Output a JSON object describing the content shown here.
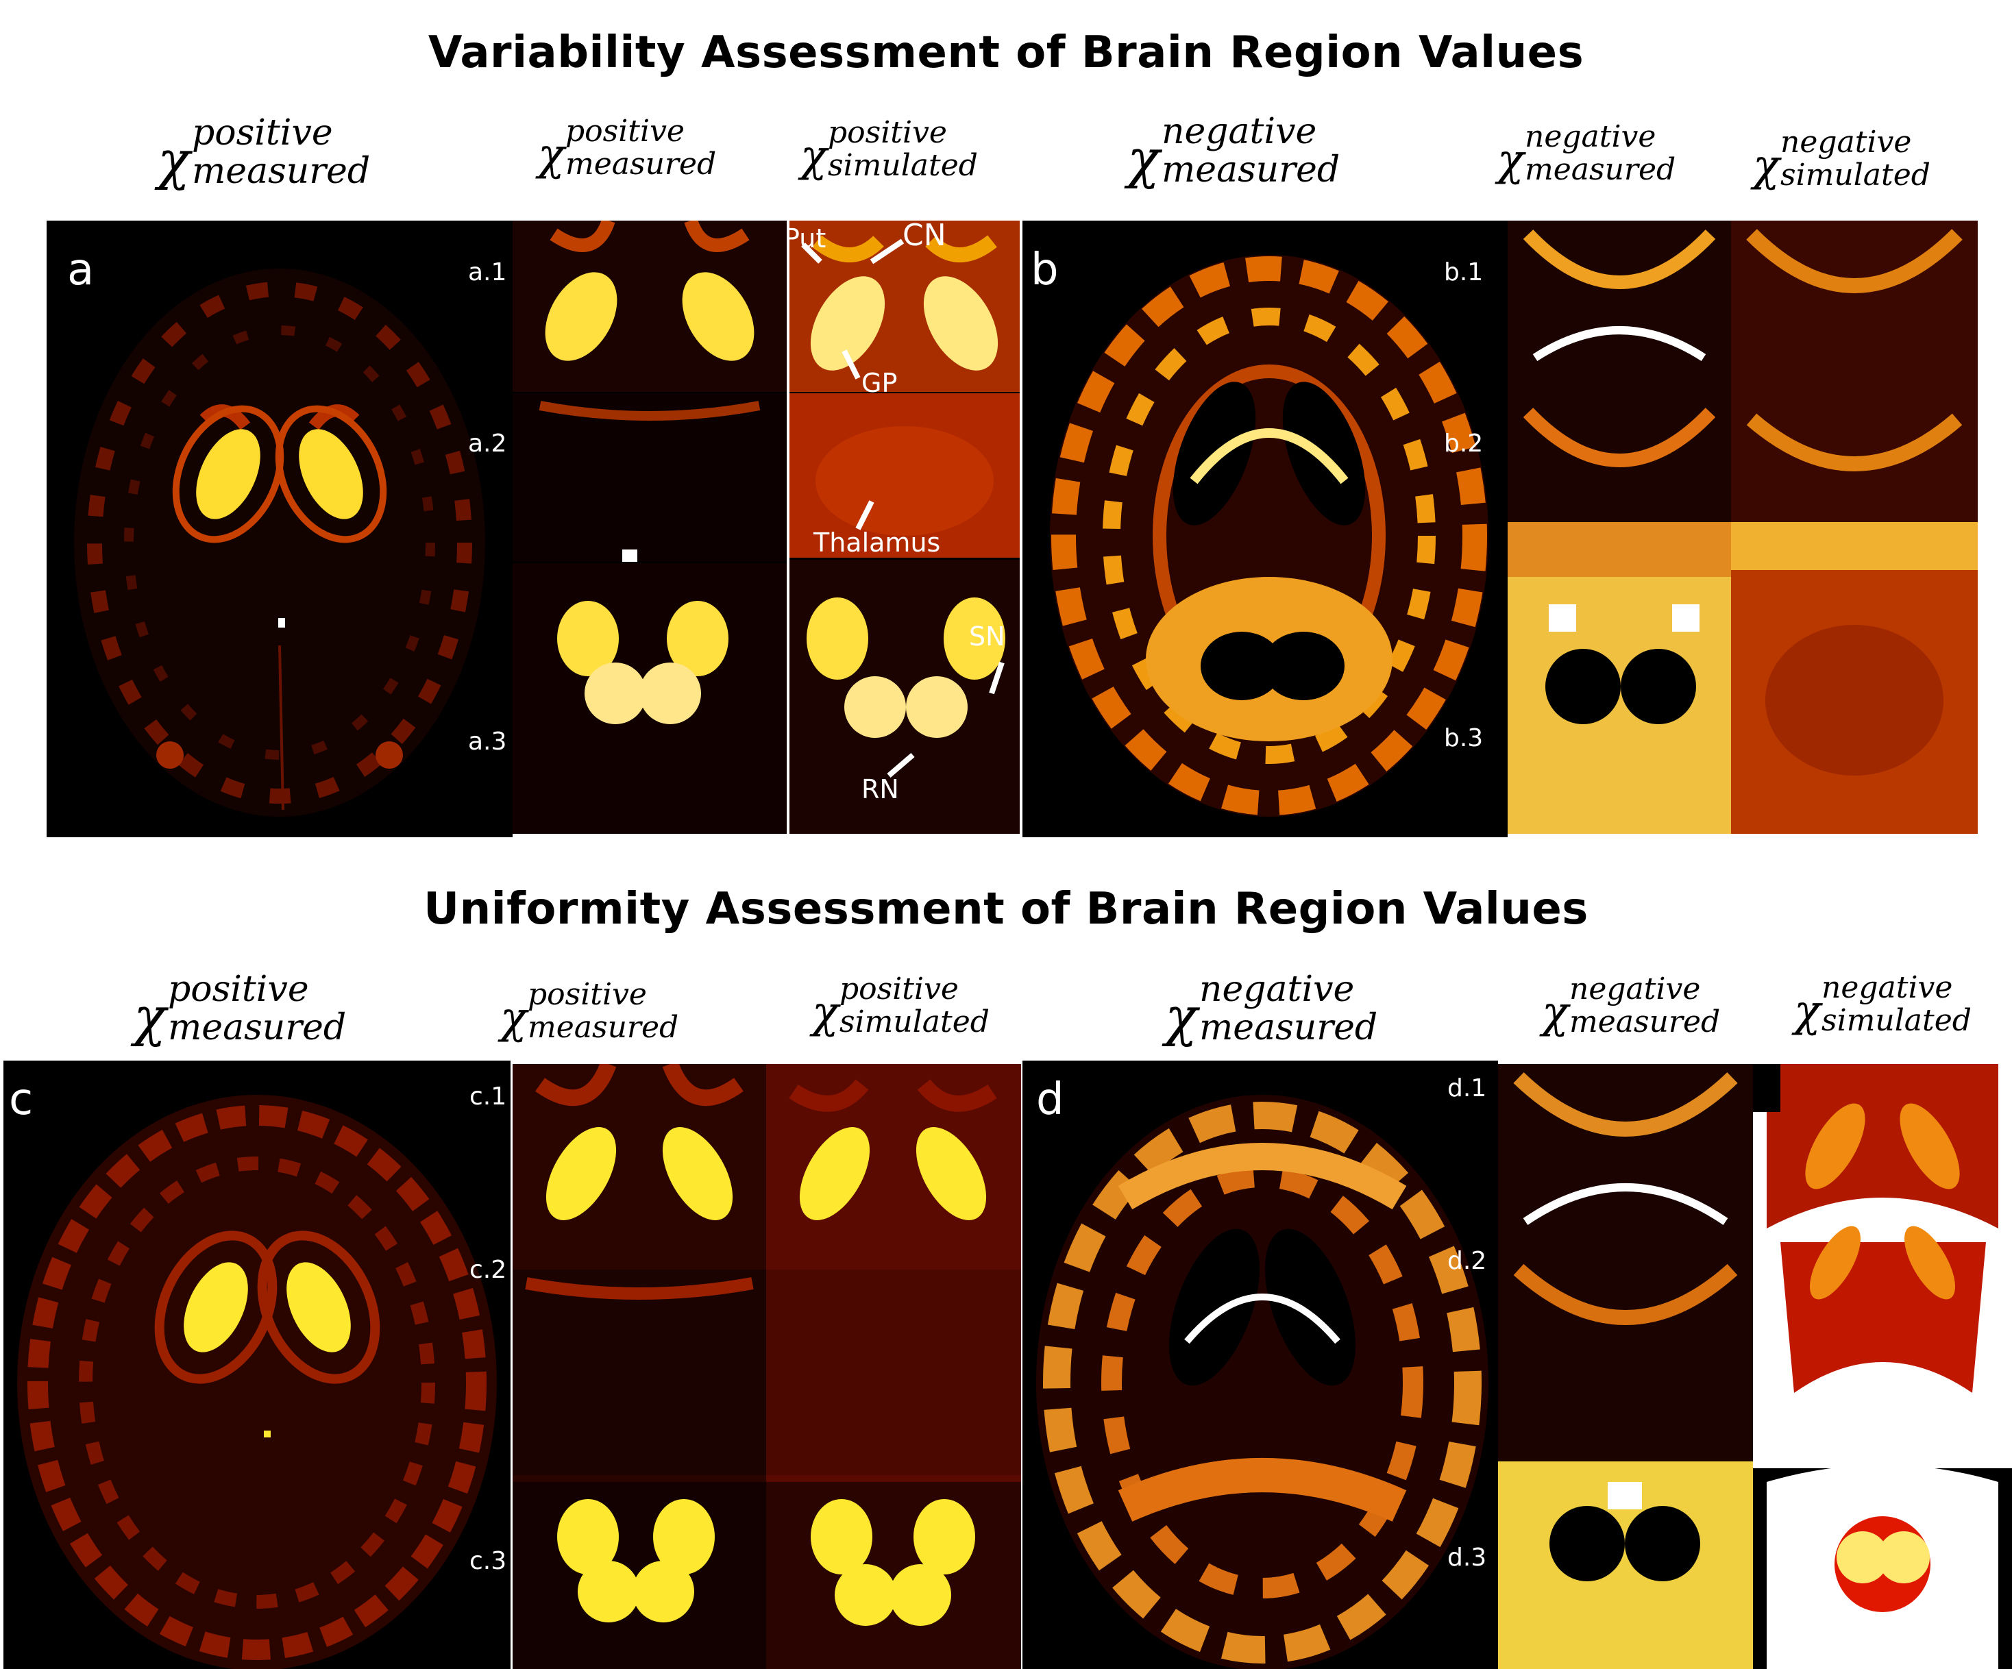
{
  "titles": {
    "variability": "Variability Assessment of Brain Region Values",
    "uniformity": "Uniformity Assessment of Brain Region Values"
  },
  "chi_symbol": "χ",
  "headers": {
    "pos": "positive",
    "neg": "negative",
    "measured": "measured",
    "simulated": "simulated"
  },
  "panel_labels": {
    "a": "a",
    "b": "b",
    "c": "c",
    "d": "d"
  },
  "slice_labels": {
    "a1": "a.1",
    "a2": "a.2",
    "a3": "a.3",
    "b1": "b.1",
    "b2": "b.2",
    "b3": "b.3",
    "c1": "c.1",
    "c2": "c.2",
    "c3": "c.3",
    "d1": "d.1",
    "d2": "d.2",
    "d3": "d.3"
  },
  "annotations": {
    "put": "Put",
    "cn": "CN",
    "gp": "GP",
    "thalamus": "Thalamus",
    "sn": "SN",
    "rn": "RN"
  },
  "colors": {
    "background": "#ffffff",
    "dark_red": "#5a0a00",
    "red": "#b82a00",
    "orange": "#f08a10",
    "yellow": "#ffe84a",
    "white": "#ffffff",
    "black": "#000000"
  }
}
